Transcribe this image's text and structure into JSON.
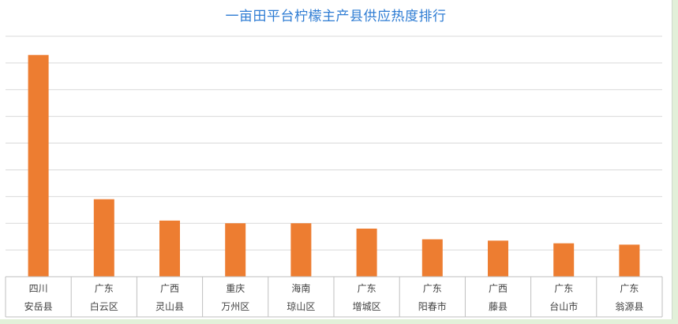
{
  "chart_data": {
    "type": "bar",
    "title": "一亩田平台柠檬主产县供应热度排行",
    "categories": [
      {
        "province": "四川",
        "county": "安岳县"
      },
      {
        "province": "广东",
        "county": "白云区"
      },
      {
        "province": "广西",
        "county": "灵山县"
      },
      {
        "province": "重庆",
        "county": "万州区"
      },
      {
        "province": "海南",
        "county": "琼山区"
      },
      {
        "province": "广东",
        "county": "增城区"
      },
      {
        "province": "广东",
        "county": "阳春市"
      },
      {
        "province": "广西",
        "county": "藤县"
      },
      {
        "province": "广东",
        "county": "台山市"
      },
      {
        "province": "广东",
        "county": "翁源县"
      }
    ],
    "values": [
      8.3,
      2.9,
      2.1,
      2.0,
      2.0,
      1.8,
      1.4,
      1.35,
      1.25,
      1.2
    ],
    "ylim": [
      0,
      9
    ],
    "grid": true,
    "colors": {
      "bar": "#ed7d31",
      "grid": "#d9d9d9",
      "axis": "#bfbfbf",
      "label": "#404040",
      "title": "#2e7cd3"
    }
  }
}
